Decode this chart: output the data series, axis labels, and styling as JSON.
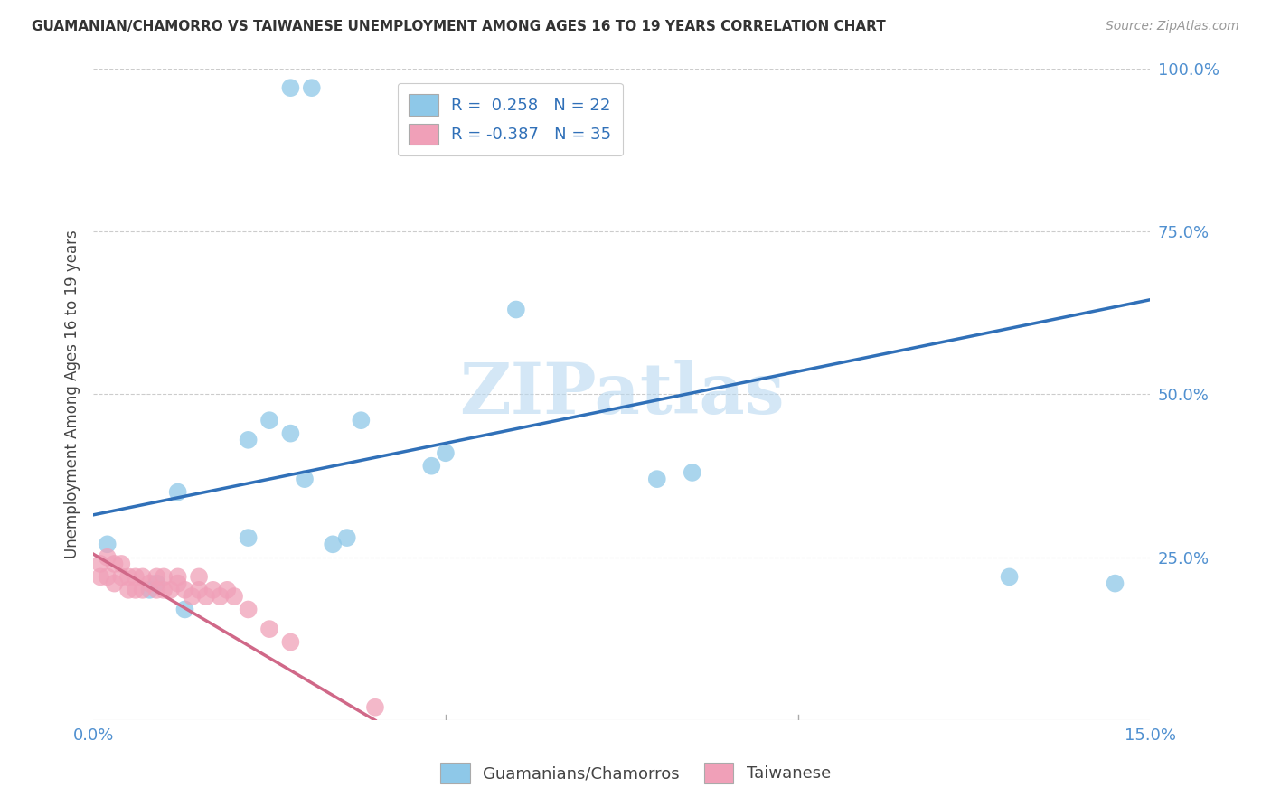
{
  "title": "GUAMANIAN/CHAMORRO VS TAIWANESE UNEMPLOYMENT AMONG AGES 16 TO 19 YEARS CORRELATION CHART",
  "source": "Source: ZipAtlas.com",
  "ylabel": "Unemployment Among Ages 16 to 19 years",
  "xlim": [
    0.0,
    0.15
  ],
  "ylim": [
    0.0,
    1.0
  ],
  "background_color": "#ffffff",
  "watermark": "ZIPatlas",
  "watermark_color": "#b8d8f0",
  "legend_R1": " 0.258",
  "legend_N1": "22",
  "legend_R2": "-0.387",
  "legend_N2": "35",
  "blue_color": "#8ec8e8",
  "pink_color": "#f0a0b8",
  "blue_line_color": "#3070b8",
  "pink_line_color": "#d06888",
  "grid_color": "#cccccc",
  "axis_tick_color": "#5090d0",
  "guam_x": [
    0.028,
    0.031,
    0.013,
    0.022,
    0.028,
    0.022,
    0.03,
    0.008,
    0.009,
    0.012,
    0.025,
    0.034,
    0.036,
    0.06,
    0.038,
    0.048,
    0.05,
    0.08,
    0.085,
    0.13,
    0.145,
    0.002
  ],
  "guam_y": [
    0.97,
    0.97,
    0.17,
    0.43,
    0.44,
    0.28,
    0.37,
    0.2,
    0.21,
    0.35,
    0.46,
    0.27,
    0.28,
    0.63,
    0.46,
    0.39,
    0.41,
    0.37,
    0.38,
    0.22,
    0.21,
    0.27
  ],
  "taiwan_x": [
    0.001,
    0.001,
    0.002,
    0.002,
    0.003,
    0.003,
    0.004,
    0.004,
    0.005,
    0.005,
    0.006,
    0.006,
    0.007,
    0.007,
    0.008,
    0.009,
    0.009,
    0.01,
    0.01,
    0.011,
    0.012,
    0.012,
    0.013,
    0.014,
    0.015,
    0.015,
    0.016,
    0.017,
    0.018,
    0.019,
    0.02,
    0.022,
    0.025,
    0.028,
    0.04
  ],
  "taiwan_y": [
    0.22,
    0.24,
    0.22,
    0.25,
    0.21,
    0.24,
    0.22,
    0.24,
    0.2,
    0.22,
    0.2,
    0.22,
    0.2,
    0.22,
    0.21,
    0.2,
    0.22,
    0.2,
    0.22,
    0.2,
    0.21,
    0.22,
    0.2,
    0.19,
    0.2,
    0.22,
    0.19,
    0.2,
    0.19,
    0.2,
    0.19,
    0.17,
    0.14,
    0.12,
    0.02
  ],
  "blue_line_x0": 0.0,
  "blue_line_y0": 0.315,
  "blue_line_x1": 0.15,
  "blue_line_y1": 0.645,
  "pink_line_x0": 0.0,
  "pink_line_y0": 0.255,
  "pink_line_x1": 0.04,
  "pink_line_y1": 0.0
}
